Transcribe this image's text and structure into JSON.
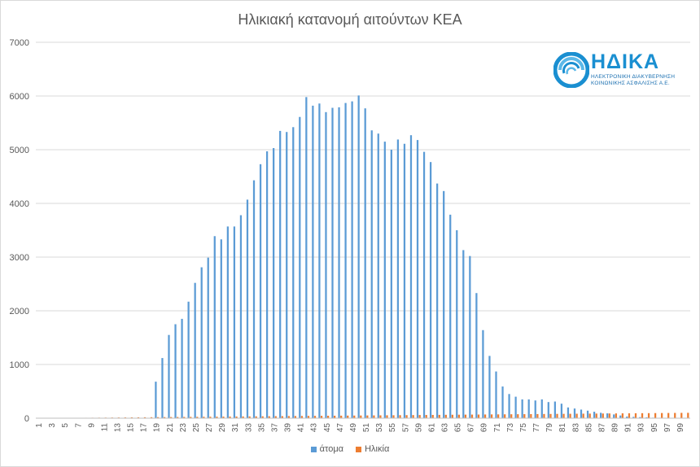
{
  "chart_data": {
    "type": "bar",
    "title": "Ηλικιακή κατανομή αιτούντων ΚΕΑ",
    "xlabel": "",
    "ylabel": "",
    "ylim": [
      0,
      7000
    ],
    "yticks": [
      0,
      1000,
      2000,
      3000,
      4000,
      5000,
      6000,
      7000
    ],
    "xtick_labels": [
      "1",
      "3",
      "5",
      "7",
      "9",
      "11",
      "13",
      "15",
      "17",
      "19",
      "21",
      "23",
      "25",
      "27",
      "29",
      "31",
      "33",
      "35",
      "37",
      "39",
      "41",
      "43",
      "45",
      "47",
      "49",
      "51",
      "53",
      "55",
      "57",
      "59",
      "61",
      "63",
      "65",
      "67",
      "69",
      "71",
      "73",
      "75",
      "77",
      "79",
      "81",
      "83",
      "85",
      "87",
      "89",
      "91",
      "93",
      "95",
      "97",
      "99"
    ],
    "grid": true,
    "legend_position": "bottom",
    "categories": [
      1,
      2,
      3,
      4,
      5,
      6,
      7,
      8,
      9,
      10,
      11,
      12,
      13,
      14,
      15,
      16,
      17,
      18,
      19,
      20,
      21,
      22,
      23,
      24,
      25,
      26,
      27,
      28,
      29,
      30,
      31,
      32,
      33,
      34,
      35,
      36,
      37,
      38,
      39,
      40,
      41,
      42,
      43,
      44,
      45,
      46,
      47,
      48,
      49,
      50,
      51,
      52,
      53,
      54,
      55,
      56,
      57,
      58,
      59,
      60,
      61,
      62,
      63,
      64,
      65,
      66,
      67,
      68,
      69,
      70,
      71,
      72,
      73,
      74,
      75,
      76,
      77,
      78,
      79,
      80,
      81,
      82,
      83,
      84,
      85,
      86,
      87,
      88,
      89,
      90,
      91,
      92,
      93,
      94,
      95,
      96,
      97,
      98,
      99,
      100
    ],
    "series": [
      {
        "name": "άτομα",
        "color": "#5b9bd5",
        "values": [
          0,
          0,
          0,
          0,
          0,
          0,
          0,
          0,
          0,
          0,
          0,
          0,
          0,
          0,
          0,
          0,
          0,
          0,
          680,
          1120,
          1550,
          1750,
          1850,
          2170,
          2520,
          2810,
          2990,
          3390,
          3330,
          3570,
          3570,
          3780,
          4070,
          4430,
          4730,
          4970,
          5030,
          5350,
          5330,
          5420,
          5610,
          5980,
          5820,
          5860,
          5700,
          5780,
          5790,
          5870,
          5900,
          6010,
          5770,
          5360,
          5300,
          5150,
          5000,
          5190,
          5110,
          5270,
          5180,
          4960,
          4770,
          4370,
          4230,
          3790,
          3500,
          3130,
          3020,
          2330,
          1640,
          1160,
          870,
          590,
          450,
          400,
          350,
          350,
          330,
          350,
          300,
          310,
          270,
          200,
          180,
          160,
          140,
          120,
          100,
          90,
          70,
          50,
          30,
          25,
          20,
          15,
          10,
          8,
          5,
          4,
          3,
          2
        ]
      },
      {
        "name": "Ηλικία",
        "color": "#ed7d31",
        "values": [
          1,
          2,
          3,
          4,
          5,
          6,
          7,
          8,
          9,
          10,
          11,
          12,
          13,
          14,
          15,
          16,
          17,
          18,
          19,
          20,
          21,
          22,
          23,
          24,
          25,
          26,
          27,
          28,
          29,
          30,
          31,
          32,
          33,
          34,
          35,
          36,
          37,
          38,
          39,
          40,
          41,
          42,
          43,
          44,
          45,
          46,
          47,
          48,
          49,
          50,
          51,
          52,
          53,
          54,
          55,
          56,
          57,
          58,
          59,
          60,
          61,
          62,
          63,
          64,
          65,
          66,
          67,
          68,
          69,
          70,
          71,
          72,
          73,
          74,
          75,
          76,
          77,
          78,
          79,
          80,
          81,
          82,
          83,
          84,
          85,
          86,
          87,
          88,
          89,
          90,
          91,
          92,
          93,
          94,
          95,
          96,
          97,
          98,
          99,
          100
        ]
      }
    ]
  },
  "logo": {
    "name": "ΗΔΙΚΑ",
    "subtitle_line1": "ΗΛΕΚΤΡΟΝΙΚΗ ΔΙΑΚΥΒΕΡΝΗΣΗ",
    "subtitle_line2": "ΚΟΙΝΩΝΙΚΗΣ ΑΣΦΑΛΙΣΗΣ Α.Ε."
  }
}
